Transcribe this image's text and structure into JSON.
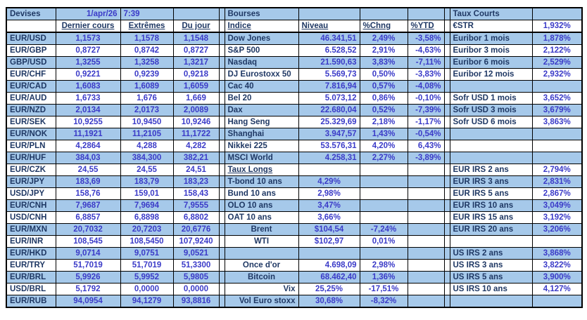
{
  "header": {
    "devises_title": "Devises",
    "date": "1/apr/26",
    "time": "7:39",
    "bourses_title": "Bourses",
    "taux_courts_title": "Taux Courts"
  },
  "devises": {
    "columns": [
      "Dernier cours",
      "Extrêmes",
      "Du jour"
    ],
    "rows": [
      {
        "pair": "EUR/USD",
        "last": "1,1573",
        "extremes": "1,1578",
        "day": "1,1548"
      },
      {
        "pair": "EUR/GBP",
        "last": "0,8727",
        "extremes": "0,8742",
        "day": "0,8727"
      },
      {
        "pair": "GBP/USD",
        "last": "1,3255",
        "extremes": "1,3258",
        "day": "1,3217"
      },
      {
        "pair": "EUR/CHF",
        "last": "0,9221",
        "extremes": "0,9239",
        "day": "0,9218"
      },
      {
        "pair": "EUR/CAD",
        "last": "1,6083",
        "extremes": "1,6089",
        "day": "1,6059"
      },
      {
        "pair": "EUR/AUD",
        "last": "1,6733",
        "extremes": "1,676",
        "day": "1,669"
      },
      {
        "pair": "EUR/NZD",
        "last": "2,0134",
        "extremes": "2,0173",
        "day": "2,0089"
      },
      {
        "pair": "EUR/SEK",
        "last": "10,9255",
        "extremes": "10,9450",
        "day": "10,9246"
      },
      {
        "pair": "EUR/NOK",
        "last": "11,1921",
        "extremes": "11,2105",
        "day": "11,1722"
      },
      {
        "pair": "EUR/PLN",
        "last": "4,2864",
        "extremes": "4,288",
        "day": "4,282"
      },
      {
        "pair": "EUR/HUF",
        "last": "384,03",
        "extremes": "384,300",
        "day": "382,21"
      },
      {
        "pair": "EUR/CZK",
        "last": "24,55",
        "extremes": "24,55",
        "day": "24,51"
      },
      {
        "pair": "EUR/JPY",
        "last": "183,69",
        "extremes": "183,79",
        "day": "183,23"
      },
      {
        "pair": "USD/JPY",
        "last": "158,76",
        "extremes": "159,01",
        "day": "158,43"
      },
      {
        "pair": "EUR/CNH",
        "last": "7,9687",
        "extremes": "7,9694",
        "day": "7,9555"
      },
      {
        "pair": "USD/CNH",
        "last": "6,8857",
        "extremes": "6,8898",
        "day": "6,8802"
      },
      {
        "pair": "EUR/MXN",
        "last": "20,7032",
        "extremes": "20,7203",
        "day": "20,6776"
      },
      {
        "pair": "EUR/INR",
        "last": "108,545",
        "extremes": "108,5450",
        "day": "107,9240"
      },
      {
        "pair": "EUR/HKD",
        "last": "9,0714",
        "extremes": "9,0751",
        "day": "9,0521"
      },
      {
        "pair": "EUR/TRY",
        "last": "51,7019",
        "extremes": "51,7019",
        "day": "51,3300"
      },
      {
        "pair": "EUR/BRL",
        "last": "5,9926",
        "extremes": "5,9952",
        "day": "5,9805"
      },
      {
        "pair": "USD/BRL",
        "last": "5,1792",
        "extremes": "0,0000",
        "day": "0,0000"
      },
      {
        "pair": "EUR/RUB",
        "last": "94,0954",
        "extremes": "94,1279",
        "day": "93,8816"
      }
    ]
  },
  "bourses": {
    "columns": [
      "Indice",
      "Niveau",
      "%Chng",
      "%YTD"
    ],
    "rows": [
      {
        "index": "Dow Jones",
        "level": "46.341,51",
        "chng": "2,49%",
        "ytd": "-3,58%"
      },
      {
        "index": "S&P 500",
        "level": "6.528,52",
        "chng": "2,91%",
        "ytd": "-4,63%"
      },
      {
        "index": "Nasdaq",
        "level": "21.590,63",
        "chng": "3,83%",
        "ytd": "-7,11%"
      },
      {
        "index": "DJ Eurostoxx 50",
        "level": "5.569,73",
        "chng": "0,50%",
        "ytd": "-3,83%"
      },
      {
        "index": "Cac 40",
        "level": "7.816,94",
        "chng": "0,57%",
        "ytd": "-4,08%"
      },
      {
        "index": "Bel 20",
        "level": "5.073,12",
        "chng": "0,86%",
        "ytd": "-0,10%"
      },
      {
        "index": "Dax",
        "level": "22.680,04",
        "chng": "0,52%",
        "ytd": "-7,39%"
      },
      {
        "index": "Hang Seng",
        "level": "25.329,69",
        "chng": "2,18%",
        "ytd": "-1,17%"
      },
      {
        "index": "Shanghai",
        "level": "3.947,57",
        "chng": "1,43%",
        "ytd": "-0,54%"
      },
      {
        "index": "Nikkei 225",
        "level": "53.576,31",
        "chng": "4,20%",
        "ytd": "6,43%"
      },
      {
        "index": "MSCI World",
        "level": "4.258,31",
        "chng": "2,27%",
        "ytd": "-3,89%"
      }
    ]
  },
  "taux_longs": {
    "title": "Taux Longs",
    "rows": [
      {
        "label": "T-bond 10 ans",
        "value": "4,29%"
      },
      {
        "label": "Bund 10 ans",
        "value": "2,98%"
      },
      {
        "label": "OLO 10 ans",
        "value": "3,47%"
      },
      {
        "label": "OAT 10 ans",
        "value": "3,66%"
      }
    ]
  },
  "commodities": {
    "rows": [
      {
        "label": "Brent",
        "value": "$104,54",
        "chng": "-7,24%"
      },
      {
        "label": "WTI",
        "value": "$102,97",
        "chng": "0,01%"
      },
      {
        "label": "Once d'or",
        "value": "4.698,09",
        "chng": "2,98%"
      },
      {
        "label": "Bitcoin",
        "value": "68.462,40",
        "chng": "1,36%"
      },
      {
        "label": "Vix",
        "value": "25,25%",
        "chng": "-17,51%"
      },
      {
        "label": "Vol Euro stoxx",
        "value": "30,68%",
        "chng": "-8,32%"
      }
    ]
  },
  "taux_courts": {
    "estr": {
      "label": "€STR",
      "value": "1,932%"
    },
    "rates": [
      {
        "label": "Euribor 1 mois",
        "value": "1,878%"
      },
      {
        "label": "Euribor 3 mois",
        "value": "2,122%"
      },
      {
        "label": "Euribor 6 mois",
        "value": "2,529%"
      },
      {
        "label": "Euribor 12 mois",
        "value": "2,932%"
      },
      {
        "label": "Sofr USD 1 mois",
        "value": "3,652%"
      },
      {
        "label": "Sofr USD 3 mois",
        "value": "3,679%"
      },
      {
        "label": "Sofr USD 6 mois",
        "value": "3,863%"
      },
      {
        "label": "EUR IRS 2 ans",
        "value": "2,794%"
      },
      {
        "label": "EUR IRS 3 ans",
        "value": "2,831%"
      },
      {
        "label": "EUR IRS 5 ans",
        "value": "2,867%"
      },
      {
        "label": "EUR IRS 10 ans",
        "value": "3,049%"
      },
      {
        "label": "EUR IRS 15 ans",
        "value": "3,192%"
      },
      {
        "label": "EUR IRS 20 ans",
        "value": "3,206%"
      },
      {
        "label": "US IRS 2 ans",
        "value": "3,868%"
      },
      {
        "label": "US IRS 3 ans",
        "value": "3,822%"
      },
      {
        "label": "US IRS 5 ans",
        "value": "3,900%"
      },
      {
        "label": "US IRS 10 ans",
        "value": "4,127%"
      }
    ]
  }
}
